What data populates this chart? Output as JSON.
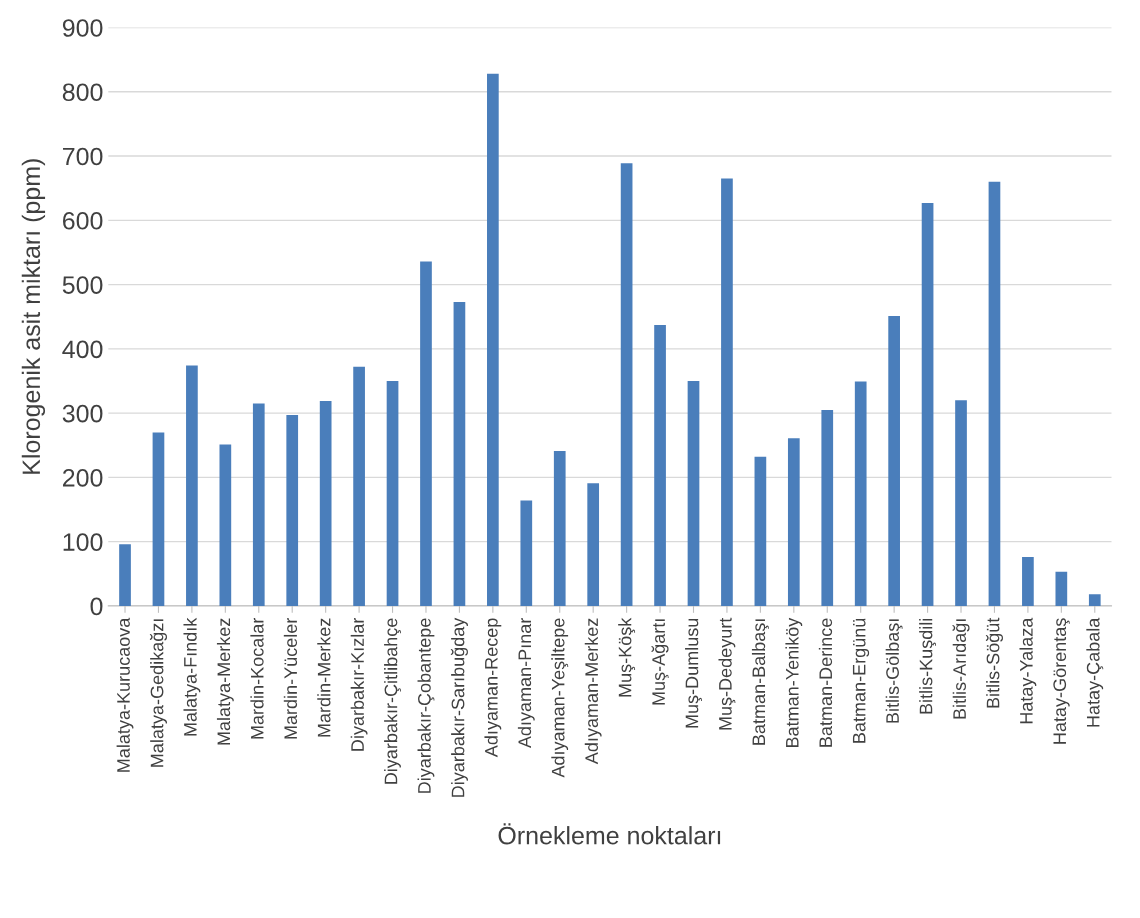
{
  "chart_data": {
    "type": "bar",
    "xlabel": "Örnekleme noktaları",
    "ylabel": "Klorogenik asit miktarı (ppm)",
    "categories": [
      "Malatya-Kurucaova",
      "Malatya-Gedikağzı",
      "Malatya-Fındık",
      "Malatya-Merkez",
      "Mardin-Kocalar",
      "Mardin-Yüceler",
      "Mardin-Merkez",
      "Diyarbakır-Kızlar",
      "Diyarbakır-Çitlibahçe",
      "Diyarbakır-Çobantepe",
      "Diyarbakır-Sarıbuğday",
      "Adıyaman-Recep",
      "Adıyaman-Pınar",
      "Adıyaman-Yeşiltepe",
      "Adıyaman-Merkez",
      "Muş-Köşk",
      "Muş-Ağartı",
      "Muş-Dumlusu",
      "Muş-Dedeyurt",
      "Batman-Balbaşı",
      "Batman-Yeniköy",
      "Batman-Derince",
      "Batman-Ergünü",
      "Bitlis-Gölbaşı",
      "Bitlis-Kuşdili",
      "Bitlis-Arıdağı",
      "Bitlis-Söğüt",
      "Hatay-Yalaza",
      "Hatay-Görentaş",
      "Hatay-Çabala"
    ],
    "values": [
      96,
      270,
      374,
      251,
      315,
      297,
      319,
      372,
      350,
      536,
      473,
      828,
      164,
      241,
      191,
      689,
      437,
      350,
      665,
      232,
      261,
      305,
      349,
      451,
      627,
      320,
      660,
      76,
      53,
      18
    ],
    "color": "#4a7ebb",
    "ylim": [
      0,
      900
    ],
    "yticks": [
      0,
      100,
      200,
      300,
      400,
      500,
      600,
      700,
      800,
      900
    ],
    "grid": "y"
  }
}
